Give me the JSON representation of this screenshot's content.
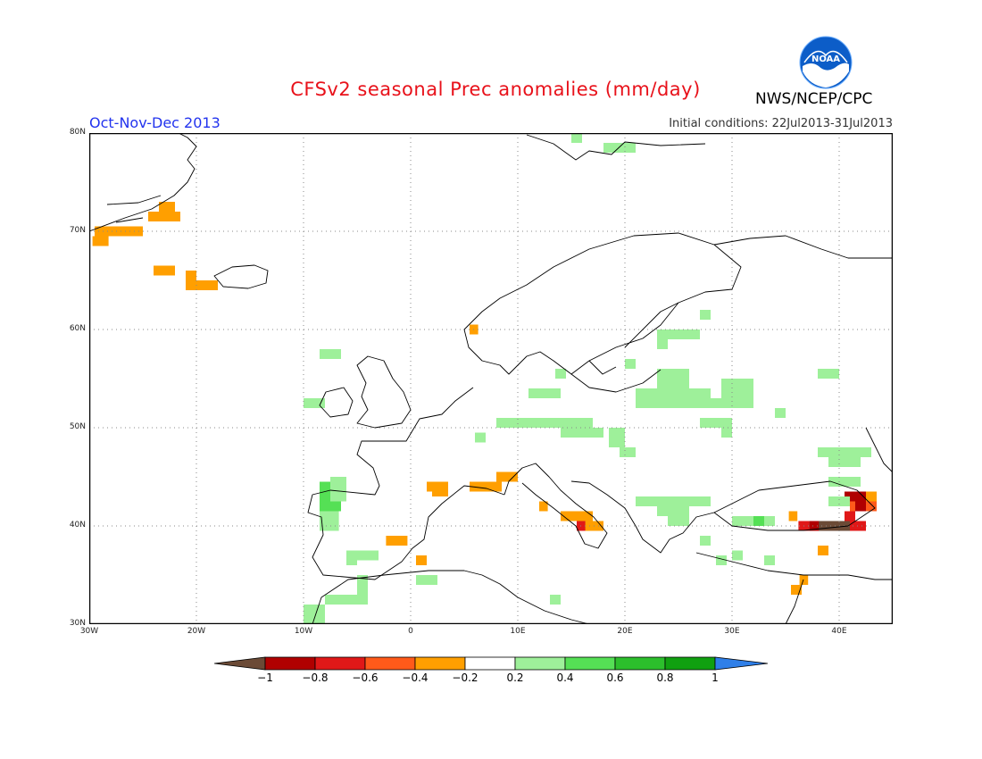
{
  "header": {
    "title": "CFSv2 seasonal Prec anomalies (mm/day)",
    "agency": "NWS/NCEP/CPC",
    "season": "Oct-Nov-Dec 2013",
    "initial_conditions": "Initial conditions: 22Jul2013-31Jul2013",
    "logo_text": "NOAA"
  },
  "map": {
    "lon_range": [
      -30,
      45
    ],
    "lat_range": [
      30,
      80
    ],
    "lat_labels": [
      "80N",
      "70N",
      "60N",
      "50N",
      "40N",
      "30N"
    ],
    "lat_values": [
      80,
      70,
      60,
      50,
      40,
      30
    ],
    "lon_labels": [
      "30W",
      "20W",
      "10W",
      "0",
      "10E",
      "20E",
      "30E",
      "40E"
    ],
    "lon_values": [
      -30,
      -20,
      -10,
      0,
      10,
      20,
      30,
      40
    ]
  },
  "colorbar": {
    "labels": [
      "−1",
      "−0.8",
      "−0.6",
      "−0.4",
      "−0.2",
      "0.2",
      "0.4",
      "0.6",
      "0.8",
      "1"
    ],
    "colors": {
      "below_min": "#6b4a36",
      "m1_m08": "#b00000",
      "m08_m06": "#e01818",
      "m06_m04": "#ff5a1a",
      "m04_m02": "#ff9f00",
      "m02_p02": "#ffffff",
      "p02_p04": "#9ef09a",
      "p04_p06": "#55e055",
      "p06_p08": "#2cbf2c",
      "p08_p1": "#10a010",
      "above_max": "#2f7fe8"
    }
  },
  "anomaly_cells": [
    {
      "lon": -29.5,
      "lat": 69.5,
      "w": 4.5,
      "h": 1,
      "v": -0.3
    },
    {
      "lon": -29.7,
      "lat": 68.5,
      "w": 1.5,
      "h": 1,
      "v": -0.3
    },
    {
      "lon": -24.5,
      "lat": 71,
      "w": 3,
      "h": 1,
      "v": -0.3
    },
    {
      "lon": -23.5,
      "lat": 72,
      "w": 1.5,
      "h": 1,
      "v": -0.3
    },
    {
      "lon": -24,
      "lat": 65.5,
      "w": 2,
      "h": 1,
      "v": -0.3
    },
    {
      "lon": -21,
      "lat": 64,
      "w": 3,
      "h": 1,
      "v": -0.3
    },
    {
      "lon": -21,
      "lat": 65,
      "w": 1,
      "h": 1,
      "v": -0.3
    },
    {
      "lon": 5.5,
      "lat": 59.5,
      "w": 0.8,
      "h": 1,
      "v": -0.3
    },
    {
      "lon": 2,
      "lat": 43,
      "w": 1.5,
      "h": 1,
      "v": -0.3
    },
    {
      "lon": 1.5,
      "lat": 43.5,
      "w": 2,
      "h": 1,
      "v": -0.3
    },
    {
      "lon": 5.5,
      "lat": 43.5,
      "w": 3,
      "h": 1,
      "v": -0.3
    },
    {
      "lon": 8,
      "lat": 44.5,
      "w": 2,
      "h": 1,
      "v": -0.3
    },
    {
      "lon": -2.3,
      "lat": 38,
      "w": 2,
      "h": 1,
      "v": -0.3
    },
    {
      "lon": 0.5,
      "lat": 36,
      "w": 1,
      "h": 1,
      "v": -0.3
    },
    {
      "lon": 12,
      "lat": 41.5,
      "w": 0.8,
      "h": 1,
      "v": -0.3
    },
    {
      "lon": 14,
      "lat": 40.5,
      "w": 3,
      "h": 1,
      "v": -0.3
    },
    {
      "lon": 16,
      "lat": 39.5,
      "w": 2,
      "h": 1,
      "v": -0.3
    },
    {
      "lon": 15.5,
      "lat": 39.5,
      "w": 0.8,
      "h": 1,
      "v": -0.7
    },
    {
      "lon": 35.3,
      "lat": 40.5,
      "w": 0.8,
      "h": 1,
      "v": -0.3
    },
    {
      "lon": 36.2,
      "lat": 39.5,
      "w": 1,
      "h": 1,
      "v": -0.7
    },
    {
      "lon": 37.2,
      "lat": 39.5,
      "w": 1,
      "h": 1,
      "v": -0.9
    },
    {
      "lon": 38.1,
      "lat": 39.5,
      "w": 3,
      "h": 1,
      "v": -1.1
    },
    {
      "lon": 41,
      "lat": 39.5,
      "w": 1.5,
      "h": 1,
      "v": -0.7
    },
    {
      "lon": 40.5,
      "lat": 40.5,
      "w": 1,
      "h": 1,
      "v": -0.7
    },
    {
      "lon": 41,
      "lat": 41.5,
      "w": 1.5,
      "h": 1,
      "v": -0.5
    },
    {
      "lon": 40.5,
      "lat": 42.5,
      "w": 2,
      "h": 1,
      "v": -0.9
    },
    {
      "lon": 41.5,
      "lat": 41.5,
      "w": 1,
      "h": 1,
      "v": -0.9
    },
    {
      "lon": 42.5,
      "lat": 42.5,
      "w": 1,
      "h": 1,
      "v": -0.3
    },
    {
      "lon": 42.5,
      "lat": 41.5,
      "w": 1,
      "h": 1,
      "v": -0.5
    },
    {
      "lon": 38,
      "lat": 37,
      "w": 1,
      "h": 1,
      "v": -0.3
    },
    {
      "lon": 35.5,
      "lat": 33,
      "w": 1,
      "h": 1,
      "v": -0.3
    },
    {
      "lon": 36.3,
      "lat": 34,
      "w": 0.8,
      "h": 1,
      "v": -0.3
    },
    {
      "lon": -8.5,
      "lat": 41.5,
      "w": 2,
      "h": 3,
      "v": 0.5
    },
    {
      "lon": -8.5,
      "lat": 39.5,
      "w": 1.8,
      "h": 2,
      "v": 0.3
    },
    {
      "lon": -7.5,
      "lat": 42.5,
      "w": 1.5,
      "h": 2.5,
      "v": 0.3
    },
    {
      "lon": -6,
      "lat": 36.5,
      "w": 3,
      "h": 1,
      "v": 0.3
    },
    {
      "lon": -6,
      "lat": 36,
      "w": 1,
      "h": 1,
      "v": 0.3
    },
    {
      "lon": -5,
      "lat": 33,
      "w": 1,
      "h": 2,
      "v": 0.3
    },
    {
      "lon": -8,
      "lat": 32,
      "w": 4,
      "h": 1,
      "v": 0.3
    },
    {
      "lon": -10,
      "lat": 30,
      "w": 2,
      "h": 2,
      "v": 0.3
    },
    {
      "lon": 0.5,
      "lat": 34,
      "w": 2,
      "h": 1,
      "v": 0.3
    },
    {
      "lon": -8.5,
      "lat": 57,
      "w": 2,
      "h": 1,
      "v": 0.3
    },
    {
      "lon": -10,
      "lat": 52,
      "w": 2,
      "h": 1,
      "v": 0.3
    },
    {
      "lon": 6,
      "lat": 48.5,
      "w": 1,
      "h": 1,
      "v": 0.3
    },
    {
      "lon": 8,
      "lat": 50,
      "w": 9,
      "h": 1,
      "v": 0.3
    },
    {
      "lon": 14,
      "lat": 49,
      "w": 4,
      "h": 1,
      "v": 0.3
    },
    {
      "lon": 11,
      "lat": 53,
      "w": 3,
      "h": 1,
      "v": 0.3
    },
    {
      "lon": 13.5,
      "lat": 55,
      "w": 1,
      "h": 1,
      "v": 0.3
    },
    {
      "lon": 18.5,
      "lat": 48,
      "w": 1.5,
      "h": 2,
      "v": 0.3
    },
    {
      "lon": 19.5,
      "lat": 47,
      "w": 1.5,
      "h": 1,
      "v": 0.3
    },
    {
      "lon": 21,
      "lat": 52,
      "w": 4,
      "h": 2,
      "v": 0.3
    },
    {
      "lon": 23,
      "lat": 53,
      "w": 3,
      "h": 3,
      "v": 0.3
    },
    {
      "lon": 25,
      "lat": 52,
      "w": 3,
      "h": 2,
      "v": 0.3
    },
    {
      "lon": 27,
      "lat": 52,
      "w": 5,
      "h": 1,
      "v": 0.3
    },
    {
      "lon": 29,
      "lat": 53,
      "w": 3,
      "h": 2,
      "v": 0.3
    },
    {
      "lon": 20,
      "lat": 56,
      "w": 1,
      "h": 1,
      "v": 0.3
    },
    {
      "lon": 23,
      "lat": 59,
      "w": 4,
      "h": 1,
      "v": 0.3
    },
    {
      "lon": 23,
      "lat": 58,
      "w": 1,
      "h": 1,
      "v": 0.3
    },
    {
      "lon": 27,
      "lat": 50,
      "w": 3,
      "h": 1,
      "v": 0.3
    },
    {
      "lon": 29,
      "lat": 49,
      "w": 1,
      "h": 1,
      "v": 0.3
    },
    {
      "lon": 34,
      "lat": 51,
      "w": 1,
      "h": 1,
      "v": 0.3
    },
    {
      "lon": 38,
      "lat": 55,
      "w": 2,
      "h": 1,
      "v": 0.3
    },
    {
      "lon": 38,
      "lat": 47,
      "w": 5,
      "h": 1,
      "v": 0.3
    },
    {
      "lon": 39,
      "lat": 46,
      "w": 3,
      "h": 1,
      "v": 0.3
    },
    {
      "lon": 39,
      "lat": 44,
      "w": 3,
      "h": 1,
      "v": 0.3
    },
    {
      "lon": 21,
      "lat": 42,
      "w": 7,
      "h": 1,
      "v": 0.3
    },
    {
      "lon": 23,
      "lat": 41,
      "w": 3,
      "h": 1,
      "v": 0.3
    },
    {
      "lon": 24,
      "lat": 40,
      "w": 2,
      "h": 1,
      "v": 0.3
    },
    {
      "lon": 30,
      "lat": 40,
      "w": 2,
      "h": 1,
      "v": 0.3
    },
    {
      "lon": 32,
      "lat": 40,
      "w": 1,
      "h": 1,
      "v": 0.5
    },
    {
      "lon": 33,
      "lat": 40,
      "w": 1,
      "h": 1,
      "v": 0.3
    },
    {
      "lon": 27,
      "lat": 38,
      "w": 1,
      "h": 1,
      "v": 0.3
    },
    {
      "lon": 28.5,
      "lat": 36,
      "w": 1,
      "h": 1,
      "v": 0.3
    },
    {
      "lon": 33,
      "lat": 36,
      "w": 1,
      "h": 1,
      "v": 0.3
    },
    {
      "lon": 30,
      "lat": 36.5,
      "w": 1,
      "h": 1,
      "v": 0.3
    },
    {
      "lon": 13,
      "lat": 32,
      "w": 1,
      "h": 1,
      "v": 0.3
    },
    {
      "lon": 18,
      "lat": 78,
      "w": 3,
      "h": 1,
      "v": 0.3
    },
    {
      "lon": 15,
      "lat": 79,
      "w": 1,
      "h": 1,
      "v": 0.3
    },
    {
      "lon": 27,
      "lat": 61,
      "w": 1,
      "h": 1,
      "v": 0.3
    },
    {
      "lon": 39,
      "lat": 42,
      "w": 2,
      "h": 1,
      "v": 0.3
    }
  ]
}
